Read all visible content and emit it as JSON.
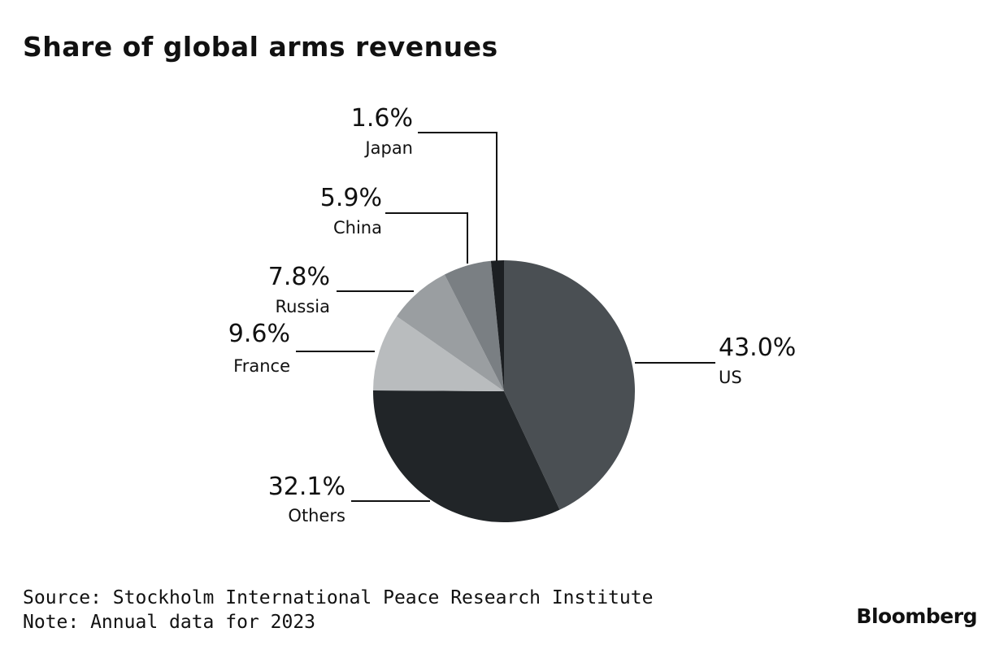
{
  "chart_data": {
    "type": "pie",
    "title": "Share of global arms revenues",
    "slices": [
      {
        "label": "US",
        "value": 43.0,
        "value_label": "43.0%",
        "color": "#4a4f53"
      },
      {
        "label": "Others",
        "value": 32.1,
        "value_label": "32.1%",
        "color": "#212528"
      },
      {
        "label": "France",
        "value": 9.6,
        "value_label": "9.6%",
        "color": "#b9bcbe"
      },
      {
        "label": "Russia",
        "value": 7.8,
        "value_label": "7.8%",
        "color": "#9a9ea1"
      },
      {
        "label": "China",
        "value": 5.9,
        "value_label": "5.9%",
        "color": "#7a7f83"
      },
      {
        "label": "Japan",
        "value": 1.6,
        "value_label": "1.6%",
        "color": "#1c1f22"
      }
    ],
    "start": "12 o'clock",
    "direction": "clockwise",
    "legend": "none"
  },
  "footer": {
    "source": "Source: Stockholm International Peace Research Institute",
    "note": "Note: Annual data for 2023"
  },
  "brand": "Bloomberg"
}
